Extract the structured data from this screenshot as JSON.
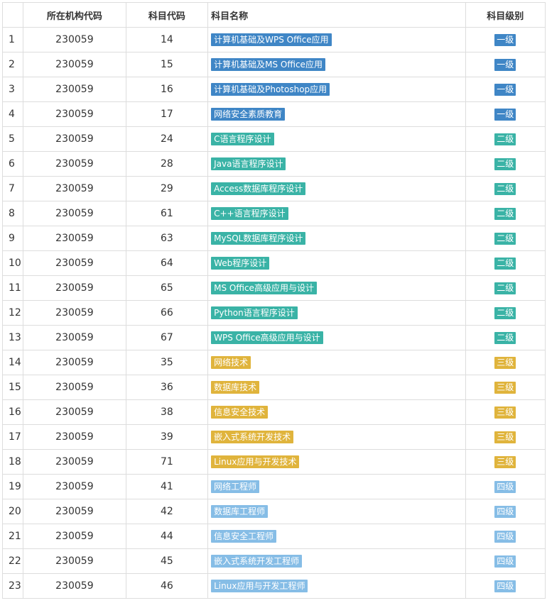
{
  "headers": {
    "idx": "",
    "org": "所在机构代码",
    "code": "科目代码",
    "name": "科目名称",
    "level": "科目级别"
  },
  "level_colors": {
    "一级": "#3f86c6",
    "二级": "#3ab3a6",
    "三级": "#e0b43c",
    "四级": "#86bde6"
  },
  "rows": [
    {
      "idx": "1",
      "org": "230059",
      "code": "14",
      "name": "计算机基础及WPS Office应用",
      "level": "一级"
    },
    {
      "idx": "2",
      "org": "230059",
      "code": "15",
      "name": "计算机基础及MS Office应用",
      "level": "一级"
    },
    {
      "idx": "3",
      "org": "230059",
      "code": "16",
      "name": "计算机基础及Photoshop应用",
      "level": "一级"
    },
    {
      "idx": "4",
      "org": "230059",
      "code": "17",
      "name": "网络安全素质教育",
      "level": "一级"
    },
    {
      "idx": "5",
      "org": "230059",
      "code": "24",
      "name": "C语言程序设计",
      "level": "二级"
    },
    {
      "idx": "6",
      "org": "230059",
      "code": "28",
      "name": "Java语言程序设计",
      "level": "二级"
    },
    {
      "idx": "7",
      "org": "230059",
      "code": "29",
      "name": "Access数据库程序设计",
      "level": "二级"
    },
    {
      "idx": "8",
      "org": "230059",
      "code": "61",
      "name": "C++语言程序设计",
      "level": "二级"
    },
    {
      "idx": "9",
      "org": "230059",
      "code": "63",
      "name": "MySQL数据库程序设计",
      "level": "二级"
    },
    {
      "idx": "10",
      "org": "230059",
      "code": "64",
      "name": "Web程序设计",
      "level": "二级"
    },
    {
      "idx": "11",
      "org": "230059",
      "code": "65",
      "name": "MS Office高级应用与设计",
      "level": "二级"
    },
    {
      "idx": "12",
      "org": "230059",
      "code": "66",
      "name": "Python语言程序设计",
      "level": "二级"
    },
    {
      "idx": "13",
      "org": "230059",
      "code": "67",
      "name": "WPS Office高级应用与设计",
      "level": "二级"
    },
    {
      "idx": "14",
      "org": "230059",
      "code": "35",
      "name": "网络技术",
      "level": "三级"
    },
    {
      "idx": "15",
      "org": "230059",
      "code": "36",
      "name": "数据库技术",
      "level": "三级"
    },
    {
      "idx": "16",
      "org": "230059",
      "code": "38",
      "name": "信息安全技术",
      "level": "三级"
    },
    {
      "idx": "17",
      "org": "230059",
      "code": "39",
      "name": "嵌入式系统开发技术",
      "level": "三级"
    },
    {
      "idx": "18",
      "org": "230059",
      "code": "71",
      "name": "Linux应用与开发技术",
      "level": "三级"
    },
    {
      "idx": "19",
      "org": "230059",
      "code": "41",
      "name": "网络工程师",
      "level": "四级"
    },
    {
      "idx": "20",
      "org": "230059",
      "code": "42",
      "name": "数据库工程师",
      "level": "四级"
    },
    {
      "idx": "21",
      "org": "230059",
      "code": "44",
      "name": "信息安全工程师",
      "level": "四级"
    },
    {
      "idx": "22",
      "org": "230059",
      "code": "45",
      "name": "嵌入式系统开发工程师",
      "level": "四级"
    },
    {
      "idx": "23",
      "org": "230059",
      "code": "46",
      "name": "Linux应用与开发工程师",
      "level": "四级"
    }
  ]
}
